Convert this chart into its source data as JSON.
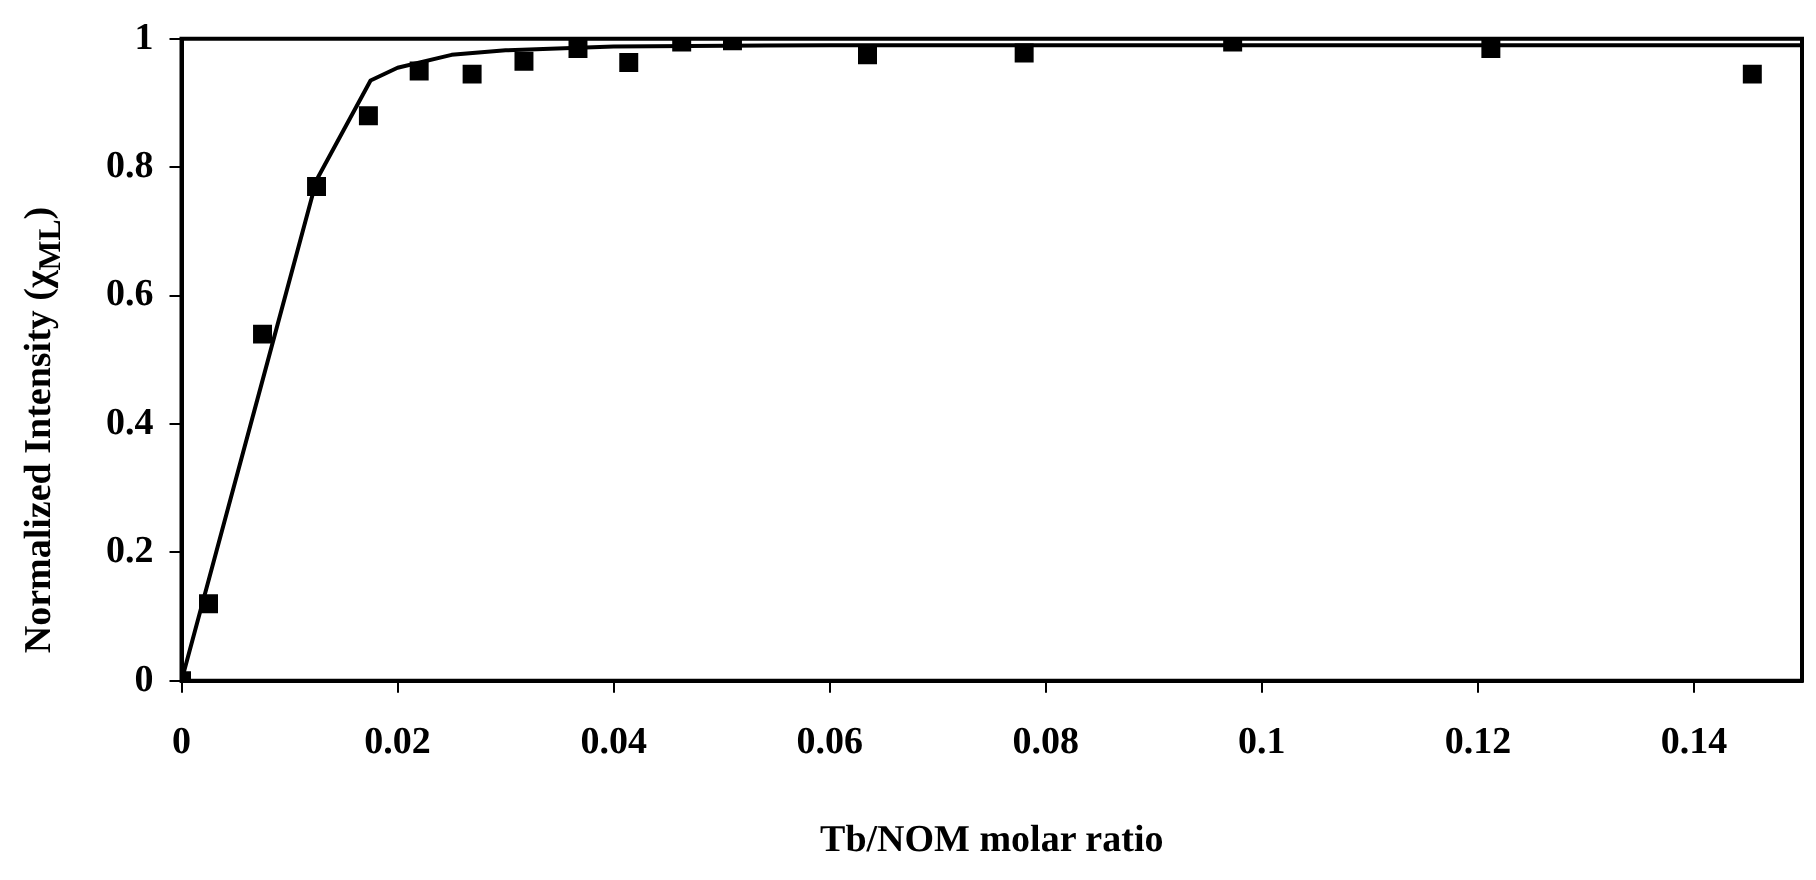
{
  "chart_data": {
    "type": "scatter",
    "xlabel": "Tb/NOM molar ratio",
    "ylabel": "Normalized Intensity (χ$_{ML}$)",
    "xlim": [
      0,
      0.15
    ],
    "xticks": [
      0,
      0.02,
      0.04,
      0.06,
      0.08,
      0.1,
      0.12,
      0.14
    ],
    "ylim": [
      0,
      1
    ],
    "yticks": [
      0,
      0.2,
      0.4,
      0.6,
      0.8,
      1
    ],
    "grid": false,
    "legend": false,
    "series": [
      {
        "marker": "square",
        "color": "#000000",
        "x": [
          0,
          0.0025,
          0.0075,
          0.0125,
          0.0173,
          0.022,
          0.0269,
          0.0317,
          0.0367,
          0.0414,
          0.0463,
          0.051,
          0.0635,
          0.078,
          0.0973,
          0.1212,
          0.1454
        ],
        "values": [
          0,
          0.12,
          0.54,
          0.77,
          0.88,
          0.95,
          0.945,
          0.965,
          0.985,
          0.963,
          0.995,
          0.997,
          0.975,
          0.978,
          0.995,
          0.985,
          0.945
        ]
      },
      {
        "type": "line",
        "marker": "none",
        "line_style": "solid",
        "color": "#000000",
        "x": [
          0,
          0.0125,
          0.0175,
          0.02,
          0.025,
          0.03,
          0.04,
          0.06,
          0.15
        ],
        "values": [
          0,
          0.78,
          0.935,
          0.955,
          0.975,
          0.982,
          0.988,
          0.99,
          0.99
        ]
      }
    ]
  }
}
